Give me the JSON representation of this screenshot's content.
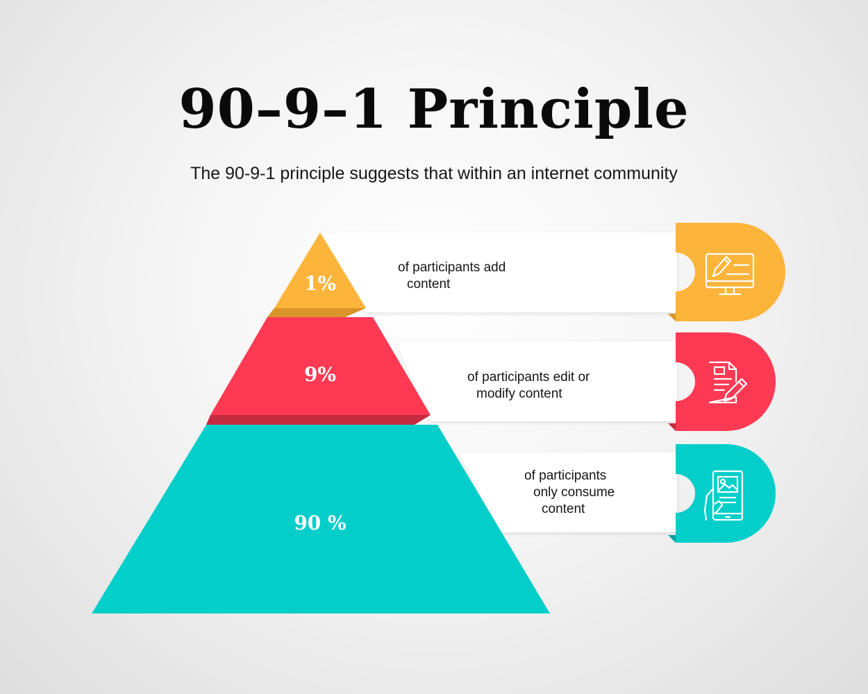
{
  "title": "90–9–1 Principle",
  "subtitle": "The 90-9-1 principle suggests that within an internet community",
  "tiers": [
    {
      "percent": "1%",
      "desc_line1": "of participants add",
      "desc_line2": "content",
      "desc_line3": "",
      "icon": "computer-edit-icon",
      "color": "#FDB43A",
      "shade": "#D9952A"
    },
    {
      "percent": "9%",
      "desc_line1": "of participants edit or",
      "desc_line2": "modify content",
      "desc_line3": "",
      "icon": "document-edit-icon",
      "color": "#FE3953",
      "shade": "#C42A40"
    },
    {
      "percent": "90 %",
      "desc_line1": "of participants",
      "desc_line2": "only consume",
      "desc_line3": "content",
      "icon": "tablet-image-icon",
      "color": "#03CECA",
      "shade": "#0AA19E"
    }
  ]
}
